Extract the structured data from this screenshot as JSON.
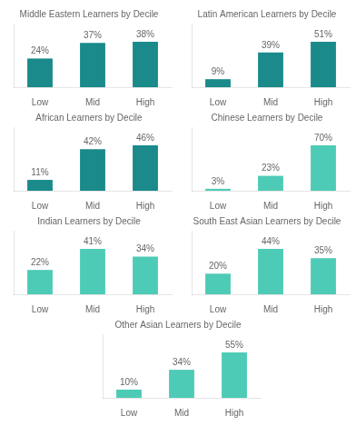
{
  "chart_data": [
    {
      "type": "bar",
      "title": "Middle Eastern Learners by Decile",
      "categories": [
        "Low",
        "Mid",
        "High"
      ],
      "values": [
        24,
        37,
        38
      ],
      "value_labels": [
        "24%",
        "37%",
        "38%"
      ],
      "color": "#1a8a8a",
      "ylim": [
        0,
        53.2
      ],
      "grid": false,
      "data_labels": true,
      "tick_labels": "x"
    },
    {
      "type": "bar",
      "title": "Latin American Learners by Decile",
      "categories": [
        "Low",
        "Mid",
        "High"
      ],
      "values": [
        9,
        39,
        51
      ],
      "value_labels": [
        "9%",
        "39%",
        "51%"
      ],
      "color": "#1a8a8a",
      "ylim": [
        0,
        71.4
      ],
      "grid": false,
      "data_labels": true,
      "tick_labels": "x"
    },
    {
      "type": "bar",
      "title": "African Learners by Decile",
      "categories": [
        "Low",
        "Mid",
        "High"
      ],
      "values": [
        11,
        42,
        46
      ],
      "value_labels": [
        "11%",
        "42%",
        "46%"
      ],
      "color": "#1a8a8a",
      "ylim": [
        0,
        64.4
      ],
      "grid": false,
      "data_labels": true,
      "tick_labels": "x"
    },
    {
      "type": "bar",
      "title": "Chinese Learners by Decile",
      "categories": [
        "Low",
        "Mid",
        "High"
      ],
      "values": [
        3,
        23,
        70
      ],
      "value_labels": [
        "3%",
        "23%",
        "70%"
      ],
      "color": "#4ecbb6",
      "ylim": [
        0,
        98
      ],
      "grid": false,
      "data_labels": true,
      "tick_labels": "x"
    },
    {
      "type": "bar",
      "title": "Indian Learners by Decile",
      "categories": [
        "Low",
        "Mid",
        "High"
      ],
      "values": [
        22,
        41,
        34
      ],
      "value_labels": [
        "22%",
        "41%",
        "34%"
      ],
      "color": "#4ecbb6",
      "ylim": [
        0,
        57.4
      ],
      "grid": false,
      "data_labels": true,
      "tick_labels": "x"
    },
    {
      "type": "bar",
      "title": "South East Asian Learners by Decile",
      "categories": [
        "Low",
        "Mid",
        "High"
      ],
      "values": [
        20,
        44,
        35
      ],
      "value_labels": [
        "20%",
        "44%",
        "35%"
      ],
      "color": "#4ecbb6",
      "ylim": [
        0,
        61.6
      ],
      "grid": false,
      "data_labels": true,
      "tick_labels": "x"
    },
    {
      "type": "bar",
      "title": "Other Asian Learners by Decile",
      "categories": [
        "Low",
        "Mid",
        "High"
      ],
      "values": [
        10,
        34,
        55
      ],
      "value_labels": [
        "10%",
        "34%",
        "55%"
      ],
      "color": "#4ecbb6",
      "ylim": [
        0,
        77
      ],
      "grid": false,
      "data_labels": true,
      "tick_labels": "x"
    }
  ]
}
